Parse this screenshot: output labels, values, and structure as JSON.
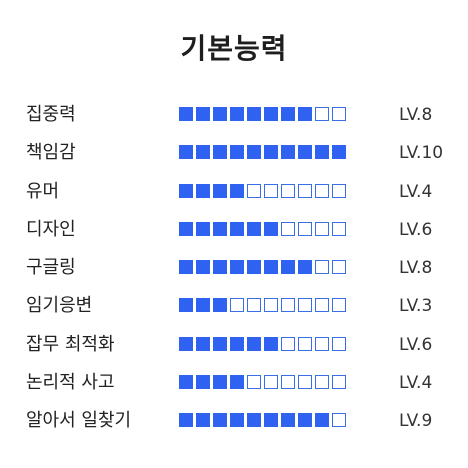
{
  "title": "기본능력",
  "colors": {
    "filled": "#2f62f0",
    "empty_border": "#3a6ee8"
  },
  "max_level": 10,
  "skills": [
    {
      "name": "집중력",
      "level": 8,
      "level_label": "LV.8"
    },
    {
      "name": "책임감",
      "level": 10,
      "level_label": "LV.10"
    },
    {
      "name": "유머",
      "level": 4,
      "level_label": "LV.4"
    },
    {
      "name": "디자인",
      "level": 6,
      "level_label": "LV.6"
    },
    {
      "name": "구글링",
      "level": 8,
      "level_label": "LV.8"
    },
    {
      "name": "임기응변",
      "level": 3,
      "level_label": "LV.3"
    },
    {
      "name": "잡무 최적화",
      "level": 6,
      "level_label": "LV.6"
    },
    {
      "name": "논리적 사고",
      "level": 4,
      "level_label": "LV.4"
    },
    {
      "name": "알아서 일찾기",
      "level": 9,
      "level_label": "LV.9"
    }
  ]
}
